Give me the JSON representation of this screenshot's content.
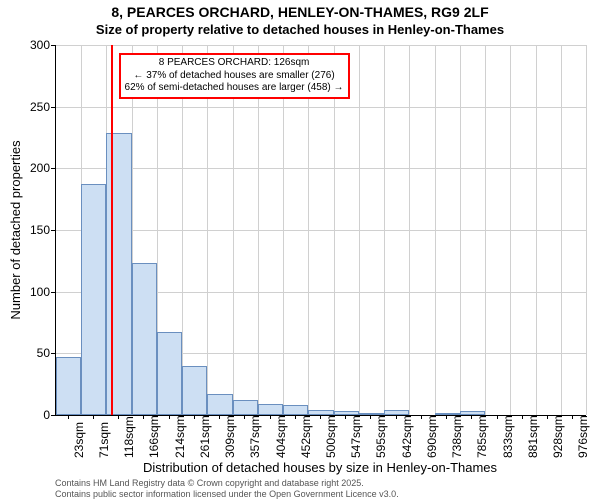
{
  "title_main": "8, PEARCES ORCHARD, HENLEY-ON-THAMES, RG9 2LF",
  "title_sub": "Size of property relative to detached houses in Henley-on-Thames",
  "y_axis_title": "Number of detached properties",
  "x_axis_title": "Distribution of detached houses by size in Henley-on-Thames",
  "footer_line1": "Contains HM Land Registry data © Crown copyright and database right 2025.",
  "footer_line2": "Contains public sector information licensed under the Open Government Licence v3.0.",
  "chart": {
    "type": "histogram",
    "background_color": "#ffffff",
    "grid_color": "#d0d0d0",
    "bar_fill": "#cddff3",
    "bar_stroke": "#6a8fbf",
    "marker_color": "#ff0000",
    "ylim": [
      0,
      300
    ],
    "ytick_step": 50,
    "bins": [
      {
        "label": "23sqm",
        "count": 47
      },
      {
        "label": "71sqm",
        "count": 187
      },
      {
        "label": "118sqm",
        "count": 229
      },
      {
        "label": "166sqm",
        "count": 123
      },
      {
        "label": "214sqm",
        "count": 67
      },
      {
        "label": "261sqm",
        "count": 40
      },
      {
        "label": "309sqm",
        "count": 17
      },
      {
        "label": "357sqm",
        "count": 12
      },
      {
        "label": "404sqm",
        "count": 9
      },
      {
        "label": "452sqm",
        "count": 8
      },
      {
        "label": "500sqm",
        "count": 4
      },
      {
        "label": "547sqm",
        "count": 3
      },
      {
        "label": "595sqm",
        "count": 1
      },
      {
        "label": "642sqm",
        "count": 4
      },
      {
        "label": "690sqm",
        "count": 0
      },
      {
        "label": "738sqm",
        "count": 1
      },
      {
        "label": "785sqm",
        "count": 3
      },
      {
        "label": "833sqm",
        "count": 0
      },
      {
        "label": "881sqm",
        "count": 0
      },
      {
        "label": "928sqm",
        "count": 0
      },
      {
        "label": "976sqm",
        "count": 0
      }
    ],
    "marker": {
      "value_sqm": 126,
      "bin_min": 23,
      "bin_max": 1024,
      "annotation_lines": [
        "8 PEARCES ORCHARD: 126sqm",
        "← 37% of detached houses are smaller (276)",
        "62% of semi-detached houses are larger (458) →"
      ]
    },
    "font_sizes": {
      "title": 14,
      "subtitle": 13,
      "axis_title": 13,
      "tick": 12,
      "annotation": 10,
      "footer": 9
    }
  }
}
